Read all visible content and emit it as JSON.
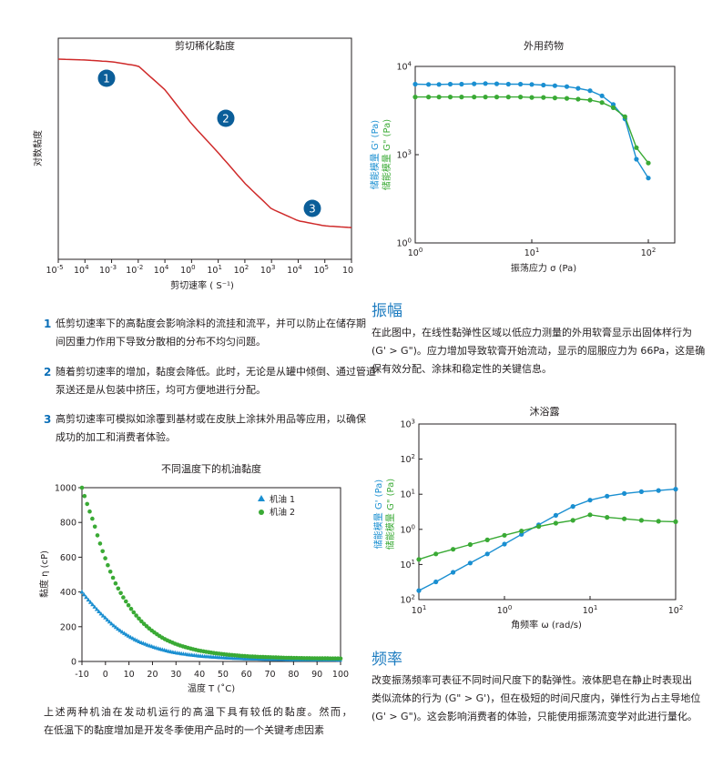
{
  "colors": {
    "blue": "#1a8fd1",
    "green": "#3aaa35",
    "red": "#cf2a2a",
    "badge": "#0b5e99",
    "heading": "#1d7cc0",
    "numbers": "#0b6fb8"
  },
  "shear": {
    "title": "剪切稀化黏度",
    "ylabel": "对数黏度",
    "xlabel": "剪切速率 ( S⁻¹)",
    "badges": [
      "1",
      "2",
      "3"
    ],
    "ticks": [
      {
        "base": "10",
        "exp": "-5"
      },
      {
        "base": "10",
        "exp": "4"
      },
      {
        "base": "10",
        "exp": "-3"
      },
      {
        "base": "10",
        "exp": "-2"
      },
      {
        "base": "10",
        "exp": "4"
      },
      {
        "base": "10",
        "exp": "0"
      },
      {
        "base": "10",
        "exp": "1"
      },
      {
        "base": "10",
        "exp": "2"
      },
      {
        "base": "10",
        "exp": "3"
      },
      {
        "base": "10",
        "exp": "4"
      },
      {
        "base": "10",
        "exp": "5"
      },
      {
        "base": "10",
        "exp": ""
      }
    ]
  },
  "items": [
    {
      "num": "1",
      "lines": [
        "低剪切速率下的高黏度会影响涂料的流挂和流平，并可以防止在储存期",
        "间因重力作用下导致分散相的分布不均匀问题。"
      ]
    },
    {
      "num": "2",
      "lines": [
        "随着剪切速率的增加，黏度会降低。此时，无论是从罐中倾倒、通过管道",
        "泵送还是从包装中挤压，均可方便地进行分配。"
      ]
    },
    {
      "num": "3",
      "lines": [
        "高剪切速率可模拟如涂覆到基材或在皮肤上涂抹外用品等应用，以确保",
        "成功的加工和消费者体验。"
      ]
    }
  ],
  "oil": {
    "footer": [
      "上述两种机油在发动机运行的高温下具有较低的黏度。然而，",
      "在低温下的黏度增加是开发冬季使用产品时的一个关键考虑因素"
    ]
  },
  "amplitude": {
    "heading": "振幅",
    "para": [
      "在此图中，在线性黏弹性区域以低应力测量的外用软膏显示出固体样行为",
      "(G' > G\")。应力增加导致软膏开始流动，显示的屈服应力为 66Pa，这是确",
      "保有效分配、涂抹和稳定性的关键信息。"
    ]
  },
  "frequency": {
    "heading": "频率",
    "para": [
      "改变振荡频率可表征不同时间尺度下的黏弹性。液体肥皂在静止时表现出",
      "类似流体的行为 (G\" > G')，但在极短的时间尺度内，弹性行为占主导地位",
      "(G' > G\")。这会影响消费者的体验，只能使用振荡流变学对此进行量化。"
    ]
  },
  "chart_data": [
    {
      "type": "line",
      "title": "剪切稀化黏度",
      "xlabel": "剪切速率 ( S⁻¹)",
      "ylabel": "对数黏度",
      "x_scale": "log",
      "xlim": [
        1e-05,
        1000000.0
      ],
      "series": [
        {
          "x": [
            1e-05,
            0.0001,
            0.001,
            0.01,
            0.1,
            1,
            10,
            100,
            1000,
            10000,
            100000,
            1000000
          ],
          "y": [
            1.0,
            0.995,
            0.985,
            0.96,
            0.82,
            0.62,
            0.45,
            0.27,
            0.12,
            0.05,
            0.02,
            0.01
          ]
        }
      ],
      "annotations": [
        "1",
        "2",
        "3"
      ],
      "grid": false
    },
    {
      "type": "scatter",
      "title": "不同温度下的机油黏度",
      "xlabel": "温度 T (˚C)",
      "ylabel": "黏度 η (cP)",
      "xlim": [
        -10,
        100
      ],
      "ylim": [
        0,
        1000
      ],
      "xticks": [
        "-10",
        "0",
        "10",
        "20",
        "30",
        "40",
        "50",
        "60",
        "70",
        "80",
        "90",
        "100"
      ],
      "yticks": [
        "0",
        "200",
        "400",
        "600",
        "800",
        "1000"
      ],
      "legend": "top-right",
      "series": [
        {
          "name": "机油 1",
          "marker": "triangle",
          "color": "#1a8fd1",
          "x": [
            -10,
            -5,
            0,
            5,
            10,
            15,
            20,
            25,
            30,
            40,
            50,
            60,
            70,
            80,
            90,
            100
          ],
          "y": [
            400,
            320,
            250,
            190,
            145,
            110,
            85,
            65,
            50,
            32,
            22,
            16,
            13,
            11,
            10,
            9
          ]
        },
        {
          "name": "机油 2",
          "marker": "circle",
          "color": "#3aaa35",
          "x": [
            -10,
            -5,
            0,
            5,
            10,
            15,
            20,
            25,
            30,
            40,
            50,
            60,
            70,
            80,
            90,
            100
          ],
          "y": [
            1000,
            800,
            590,
            430,
            320,
            235,
            175,
            130,
            100,
            62,
            42,
            30,
            24,
            20,
            18,
            17
          ]
        }
      ],
      "grid": false
    },
    {
      "type": "scatter",
      "title": "外用药物",
      "xlabel": "振荡应力 σ (Pa)",
      "ylabel": [
        "储能模量 G' (Pa)",
        "储能模量 G\" (Pa)"
      ],
      "x_scale": "log",
      "y_scale": "log",
      "xlim": [
        1,
        100
      ],
      "ylim": [
        1,
        10000
      ],
      "xticks": [
        {
          "base": "10",
          "exp": "0"
        },
        {
          "base": "10",
          "exp": "1"
        },
        {
          "base": "10",
          "exp": "2"
        }
      ],
      "yticks": [
        {
          "base": "10",
          "exp": "0"
        },
        {
          "base": "10",
          "exp": "3"
        },
        {
          "base": "10",
          "exp": "4"
        }
      ],
      "series": [
        {
          "name": "G'",
          "color": "#1a8fd1",
          "x": [
            1,
            1.3,
            1.6,
            2,
            2.5,
            3.2,
            4,
            5,
            6.3,
            8,
            10,
            12.6,
            15.8,
            20,
            25,
            31.6,
            40,
            50,
            63,
            79,
            100
          ],
          "y": [
            6300,
            6250,
            6250,
            6300,
            6300,
            6350,
            6400,
            6350,
            6300,
            6300,
            6250,
            6150,
            6050,
            5900,
            5650,
            5300,
            4650,
            3700,
            2550,
            700,
            160
          ]
        },
        {
          "name": "G\"",
          "color": "#3aaa35",
          "x": [
            1,
            1.3,
            1.6,
            2,
            2.5,
            3.2,
            4,
            5,
            6.3,
            8,
            10,
            12.6,
            15.8,
            20,
            25,
            31.6,
            40,
            50,
            63,
            79,
            100
          ],
          "y": [
            4500,
            4500,
            4500,
            4500,
            4500,
            4500,
            4500,
            4500,
            4500,
            4500,
            4450,
            4450,
            4400,
            4350,
            4250,
            4150,
            3900,
            3400,
            2700,
            1200,
            520
          ]
        }
      ],
      "grid": false
    },
    {
      "type": "line",
      "title": "沐浴露",
      "xlabel": "角频率 ω (rad/s)",
      "ylabel": [
        "储能模量 G' (Pa)",
        "储能模量 G\" (Pa)"
      ],
      "x_scale": "log",
      "y_scale": "log",
      "xlim": [
        0.1,
        100
      ],
      "ylim": [
        0.01,
        1000
      ],
      "xticks": [
        {
          "base": "10",
          "exp": "1"
        },
        {
          "base": "10",
          "exp": "0"
        },
        {
          "base": "10",
          "exp": "1"
        },
        {
          "base": "10",
          "exp": "2"
        }
      ],
      "yticks": [
        {
          "base": "10",
          "exp": "2"
        },
        {
          "base": "10",
          "exp": "1"
        },
        {
          "base": "10",
          "exp": "0"
        },
        {
          "base": "10",
          "exp": "1"
        },
        {
          "base": "10",
          "exp": "2"
        },
        {
          "base": "10",
          "exp": "3"
        }
      ],
      "series": [
        {
          "name": "G'",
          "color": "#1a8fd1",
          "x": [
            0.1,
            0.158,
            0.251,
            0.398,
            0.631,
            1,
            1.58,
            2.51,
            3.98,
            6.31,
            10,
            15.8,
            25.1,
            39.8,
            63.1,
            100
          ],
          "y": [
            0.018,
            0.032,
            0.06,
            0.11,
            0.2,
            0.38,
            0.72,
            1.35,
            2.5,
            4.5,
            6.8,
            8.8,
            10.5,
            11.8,
            12.8,
            14
          ]
        },
        {
          "name": "G\"",
          "color": "#3aaa35",
          "x": [
            0.1,
            0.158,
            0.251,
            0.398,
            0.631,
            1,
            1.58,
            2.51,
            3.98,
            6.31,
            10,
            15.8,
            25.1,
            39.8,
            63.1,
            100
          ],
          "y": [
            0.14,
            0.2,
            0.27,
            0.37,
            0.5,
            0.68,
            0.9,
            1.2,
            1.5,
            1.8,
            2.6,
            2.2,
            2.0,
            1.8,
            1.7,
            1.65
          ]
        }
      ],
      "grid": false
    }
  ]
}
